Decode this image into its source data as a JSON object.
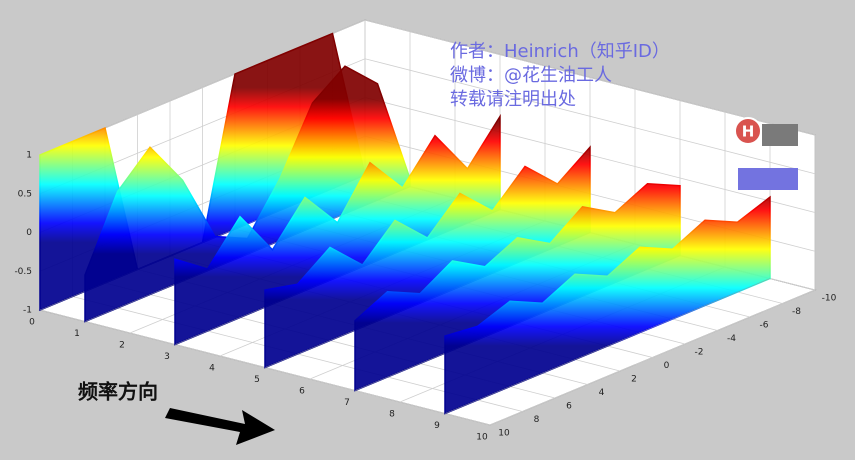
{
  "chart_data": {
    "type": "surface3d",
    "colormap": "jet",
    "xlim": [
      0,
      10
    ],
    "ylim": [
      -10,
      10
    ],
    "zlim": [
      -1,
      1
    ],
    "xticks": [
      0,
      1,
      2,
      3,
      4,
      5,
      6,
      7,
      8,
      9,
      10
    ],
    "yticks": [
      -10,
      -8,
      -6,
      -4,
      -2,
      0,
      2,
      4,
      6,
      8,
      10
    ],
    "zticks": [
      -1,
      -0.5,
      0,
      0.5,
      1
    ],
    "grid": true,
    "y": [
      -10,
      -8,
      -6,
      -4,
      -2,
      0,
      2,
      4,
      6,
      8,
      10
    ],
    "rows": [
      {
        "x": 0,
        "z": [
          -1,
          1,
          1,
          1,
          1,
          -1,
          -1,
          -1,
          1,
          1,
          1
        ]
      },
      {
        "x": 1,
        "z": [
          -0.9,
          0.5,
          0.9,
          0.6,
          -0.2,
          -0.8,
          -0.6,
          0.3,
          0.9,
          0.5,
          -0.4
        ]
      },
      {
        "x": 3,
        "z": [
          0.2,
          -0.3,
          0.3,
          -0.2,
          0.3,
          -0.3,
          0.2,
          -0.3,
          0.3,
          -0.2,
          0.1
        ]
      },
      {
        "x": 5,
        "z": [
          0.1,
          -0.2,
          0.2,
          -0.2,
          0.2,
          -0.2,
          0.2,
          -0.2,
          0.2,
          -0.1,
          0
        ]
      },
      {
        "x": 7,
        "z": [
          -0.1,
          0.1,
          -0.1,
          0.15,
          -0.15,
          0.1,
          -0.1,
          0.15,
          -0.1,
          0.1,
          -0.1
        ]
      },
      {
        "x": 9,
        "z": [
          0.05,
          -0.1,
          0.1,
          -0.1,
          0.1,
          -0.1,
          0.1,
          -0.1,
          0.1,
          -0.05,
          0
        ]
      }
    ],
    "annotations": [
      "作者：Heinrich（知乎ID）",
      "微博：@花生油工人",
      "转载请注明出处",
      "频率方向"
    ],
    "logo": "H"
  }
}
